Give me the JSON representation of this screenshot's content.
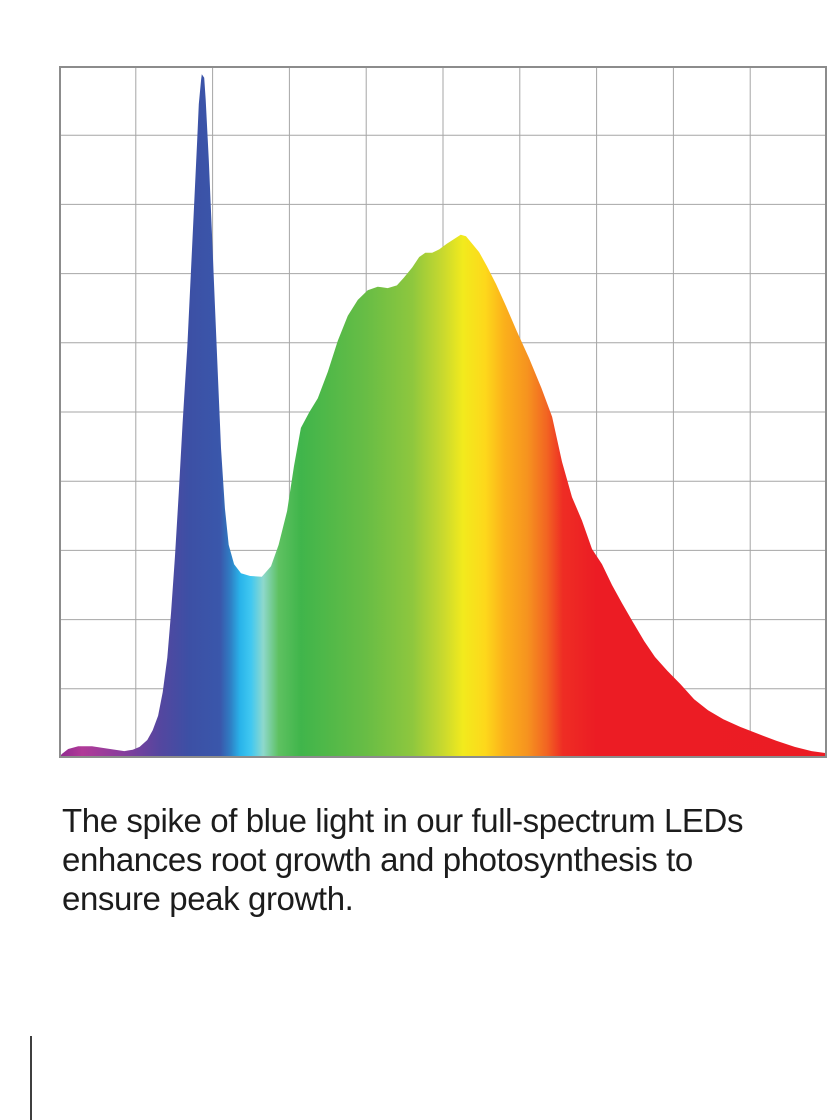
{
  "page": {
    "background": "#ffffff"
  },
  "chart": {
    "border_color": "#8c8c8c",
    "grid_color": "#a6a6a6",
    "grid_cols": 10,
    "grid_rows": 10
  },
  "chart_data": {
    "type": "area",
    "title": "",
    "xlabel": "",
    "ylabel": "",
    "grid": "on",
    "legend": "none",
    "axis_tick_labels": "none",
    "x_range_pct": [
      0,
      100
    ],
    "y_range_norm": [
      0,
      1
    ],
    "description_visible_features": {
      "blue_spike_peak": {
        "x_pct": 18.6,
        "y_norm": 0.988
      },
      "valley": {
        "x_pct": 26.4,
        "y_norm": 0.262
      },
      "broad_peak": {
        "x_pct": 52.3,
        "y_norm": 0.756
      },
      "right_tail_end": {
        "x_pct": 100,
        "y_norm": 0.007
      }
    },
    "points": [
      [
        0,
        0.001
      ],
      [
        0.4,
        0.006
      ],
      [
        1.2,
        0.013
      ],
      [
        2.5,
        0.017
      ],
      [
        4.3,
        0.017
      ],
      [
        6,
        0.014
      ],
      [
        7.3,
        0.012
      ],
      [
        8.5,
        0.01
      ],
      [
        9.6,
        0.012
      ],
      [
        10.5,
        0.016
      ],
      [
        11.5,
        0.026
      ],
      [
        12.2,
        0.04
      ],
      [
        12.9,
        0.061
      ],
      [
        13.5,
        0.095
      ],
      [
        14.1,
        0.145
      ],
      [
        14.6,
        0.211
      ],
      [
        15.1,
        0.292
      ],
      [
        15.6,
        0.384
      ],
      [
        16.1,
        0.484
      ],
      [
        16.7,
        0.594
      ],
      [
        17.2,
        0.708
      ],
      [
        17.6,
        0.802
      ],
      [
        18,
        0.893
      ],
      [
        18.2,
        0.945
      ],
      [
        18.5,
        0.98
      ],
      [
        18.6,
        0.988
      ],
      [
        18.9,
        0.983
      ],
      [
        19.1,
        0.951
      ],
      [
        19.5,
        0.864
      ],
      [
        19.9,
        0.763
      ],
      [
        20.3,
        0.655
      ],
      [
        20.7,
        0.549
      ],
      [
        21.1,
        0.448
      ],
      [
        21.6,
        0.361
      ],
      [
        22.1,
        0.308
      ],
      [
        22.8,
        0.28
      ],
      [
        23.7,
        0.267
      ],
      [
        24.9,
        0.263
      ],
      [
        26.4,
        0.262
      ],
      [
        27.6,
        0.277
      ],
      [
        28.6,
        0.308
      ],
      [
        29.7,
        0.357
      ],
      [
        30.6,
        0.422
      ],
      [
        31.5,
        0.477
      ],
      [
        32.6,
        0.5
      ],
      [
        33.7,
        0.52
      ],
      [
        35,
        0.558
      ],
      [
        36.3,
        0.603
      ],
      [
        37.6,
        0.639
      ],
      [
        38.9,
        0.662
      ],
      [
        40.2,
        0.676
      ],
      [
        41.5,
        0.681
      ],
      [
        42.8,
        0.679
      ],
      [
        44,
        0.683
      ],
      [
        44.9,
        0.694
      ],
      [
        46,
        0.709
      ],
      [
        46.9,
        0.724
      ],
      [
        47.7,
        0.73
      ],
      [
        48.6,
        0.73
      ],
      [
        49.5,
        0.735
      ],
      [
        50.5,
        0.743
      ],
      [
        51.6,
        0.751
      ],
      [
        52.3,
        0.756
      ],
      [
        53,
        0.754
      ],
      [
        53.8,
        0.743
      ],
      [
        54.7,
        0.731
      ],
      [
        55.7,
        0.711
      ],
      [
        56.9,
        0.685
      ],
      [
        58.2,
        0.653
      ],
      [
        59.6,
        0.617
      ],
      [
        61.2,
        0.578
      ],
      [
        62.8,
        0.535
      ],
      [
        64.2,
        0.493
      ],
      [
        65.5,
        0.428
      ],
      [
        66.8,
        0.377
      ],
      [
        68.1,
        0.343
      ],
      [
        69.4,
        0.302
      ],
      [
        70.7,
        0.28
      ],
      [
        72,
        0.25
      ],
      [
        73.3,
        0.224
      ],
      [
        74.7,
        0.197
      ],
      [
        76.2,
        0.169
      ],
      [
        77.6,
        0.146
      ],
      [
        79.2,
        0.126
      ],
      [
        80.9,
        0.107
      ],
      [
        82.7,
        0.085
      ],
      [
        84.5,
        0.069
      ],
      [
        86.5,
        0.056
      ],
      [
        88.7,
        0.045
      ],
      [
        91,
        0.035
      ],
      [
        93.4,
        0.025
      ],
      [
        95.8,
        0.016
      ],
      [
        98,
        0.01
      ],
      [
        100,
        0.007
      ]
    ],
    "spectrum_gradient": [
      {
        "pos": 0,
        "color": "#8e2a8f"
      },
      {
        "pos": 3,
        "color": "#b13a98"
      },
      {
        "pos": 8,
        "color": "#8a3d9c"
      },
      {
        "pos": 13,
        "color": "#55469f"
      },
      {
        "pos": 17,
        "color": "#3c50a5"
      },
      {
        "pos": 21,
        "color": "#3a57ab"
      },
      {
        "pos": 22.3,
        "color": "#2f7ec4"
      },
      {
        "pos": 23.6,
        "color": "#29b4ea"
      },
      {
        "pos": 25,
        "color": "#41c8f1"
      },
      {
        "pos": 26.6,
        "color": "#8ed8cc"
      },
      {
        "pos": 28.6,
        "color": "#5ec161"
      },
      {
        "pos": 31.5,
        "color": "#40b54b"
      },
      {
        "pos": 40,
        "color": "#68bd45"
      },
      {
        "pos": 46,
        "color": "#8ec73e"
      },
      {
        "pos": 50,
        "color": "#c9d92e"
      },
      {
        "pos": 52.6,
        "color": "#f2ea1d"
      },
      {
        "pos": 55.5,
        "color": "#fdd81b"
      },
      {
        "pos": 58,
        "color": "#fbb01b"
      },
      {
        "pos": 61,
        "color": "#f6931f"
      },
      {
        "pos": 63.5,
        "color": "#f26522"
      },
      {
        "pos": 65.6,
        "color": "#ee2d24"
      },
      {
        "pos": 70,
        "color": "#ec1c24"
      },
      {
        "pos": 100,
        "color": "#eb1c24"
      }
    ]
  },
  "caption": {
    "color": "#1c1c1c",
    "text": "The spike of blue light in our full-spectrum LEDs enhances root growth and photosynthesis to ensure peak growth.",
    "lines": [
      "The spike of blue light in our full-spectrum LEDs",
      "enhances root growth and photosynthesis to",
      "ensure peak growth."
    ]
  }
}
